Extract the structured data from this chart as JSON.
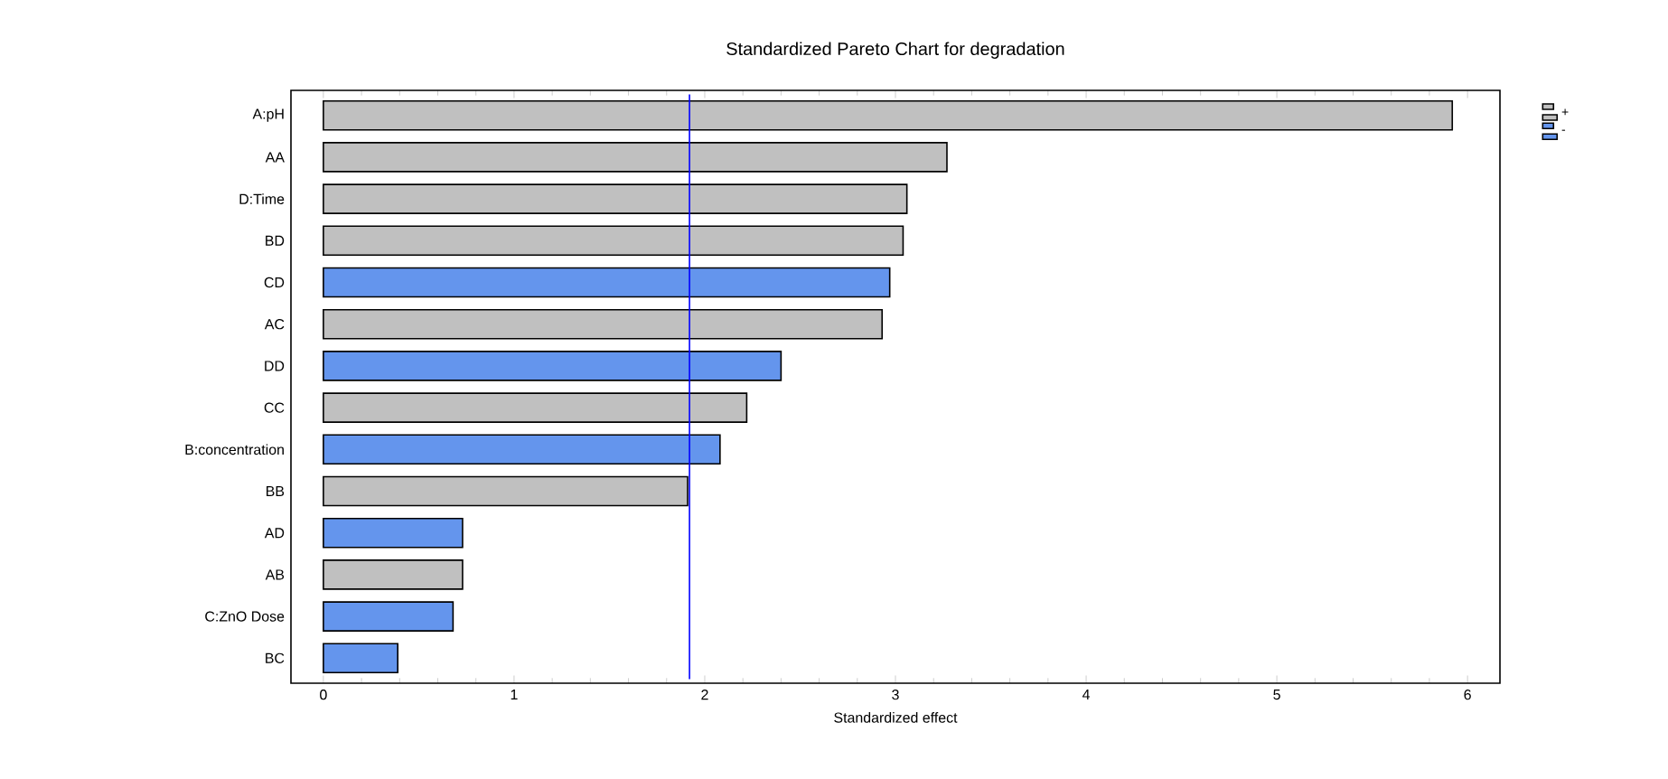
{
  "chart_data": {
    "type": "bar",
    "orientation": "horizontal",
    "title": "Standardized Pareto Chart for degradation",
    "xlabel": "Standardized effect",
    "categories": [
      "A:pH",
      "AA",
      "D:Time",
      "BD",
      "CD",
      "AC",
      "DD",
      "CC",
      "B:concentration",
      "BB",
      "AD",
      "AB",
      "C:ZnO Dose",
      "BC"
    ],
    "series": [
      {
        "name": "+",
        "color": "#c0c0c0",
        "values": [
          5.92,
          3.27,
          3.06,
          3.04,
          null,
          2.93,
          null,
          2.22,
          null,
          1.91,
          null,
          0.73,
          null,
          null
        ]
      },
      {
        "name": "-",
        "color": "#6495ed",
        "values": [
          null,
          null,
          null,
          null,
          2.97,
          null,
          2.4,
          null,
          2.08,
          null,
          0.73,
          null,
          0.68,
          0.39
        ]
      }
    ],
    "xlim": [
      -0.17,
      6.17
    ],
    "xticks": [
      0,
      1,
      2,
      3,
      4,
      5,
      6
    ],
    "ref_lines": [
      {
        "axis": "x",
        "value": 1.92,
        "color": "#0000ff"
      }
    ],
    "legend": "top right"
  }
}
